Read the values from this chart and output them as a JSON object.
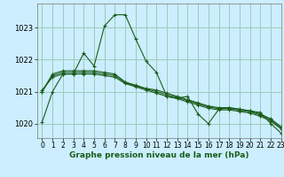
{
  "title": "Graphe pression niveau de la mer (hPa)",
  "bg_color": "#cceeff",
  "grid_color": "#99ccbb",
  "line_color": "#1a5c1a",
  "xlim": [
    -0.5,
    23
  ],
  "ylim": [
    1019.55,
    1023.75
  ],
  "yticks": [
    1020,
    1021,
    1022,
    1023
  ],
  "xticks": [
    0,
    1,
    2,
    3,
    4,
    5,
    6,
    7,
    8,
    9,
    10,
    11,
    12,
    13,
    14,
    15,
    16,
    17,
    18,
    19,
    20,
    21,
    22,
    23
  ],
  "series": [
    [
      1020.05,
      1021.0,
      1021.55,
      1021.55,
      1022.2,
      1021.8,
      1023.05,
      1023.4,
      1023.4,
      1022.65,
      1021.95,
      1021.6,
      1020.85,
      1020.8,
      1020.85,
      1020.3,
      1020.0,
      1020.45,
      1020.5,
      1020.45,
      1020.4,
      1020.35,
      1020.0,
      1019.7
    ],
    [
      1021.0,
      1021.55,
      1021.65,
      1021.65,
      1021.65,
      1021.65,
      1021.6,
      1021.55,
      1021.3,
      1021.2,
      1021.1,
      1021.05,
      1020.95,
      1020.85,
      1020.75,
      1020.65,
      1020.55,
      1020.5,
      1020.5,
      1020.45,
      1020.4,
      1020.3,
      1020.15,
      1019.9
    ],
    [
      1021.0,
      1021.5,
      1021.6,
      1021.6,
      1021.6,
      1021.6,
      1021.55,
      1021.5,
      1021.28,
      1021.18,
      1021.08,
      1021.0,
      1020.9,
      1020.82,
      1020.72,
      1020.62,
      1020.52,
      1020.47,
      1020.47,
      1020.42,
      1020.37,
      1020.27,
      1020.12,
      1019.87
    ],
    [
      1021.05,
      1021.45,
      1021.55,
      1021.55,
      1021.55,
      1021.55,
      1021.5,
      1021.45,
      1021.25,
      1021.15,
      1021.05,
      1020.95,
      1020.85,
      1020.78,
      1020.68,
      1020.58,
      1020.48,
      1020.43,
      1020.43,
      1020.38,
      1020.33,
      1020.23,
      1020.08,
      1019.83
    ]
  ]
}
